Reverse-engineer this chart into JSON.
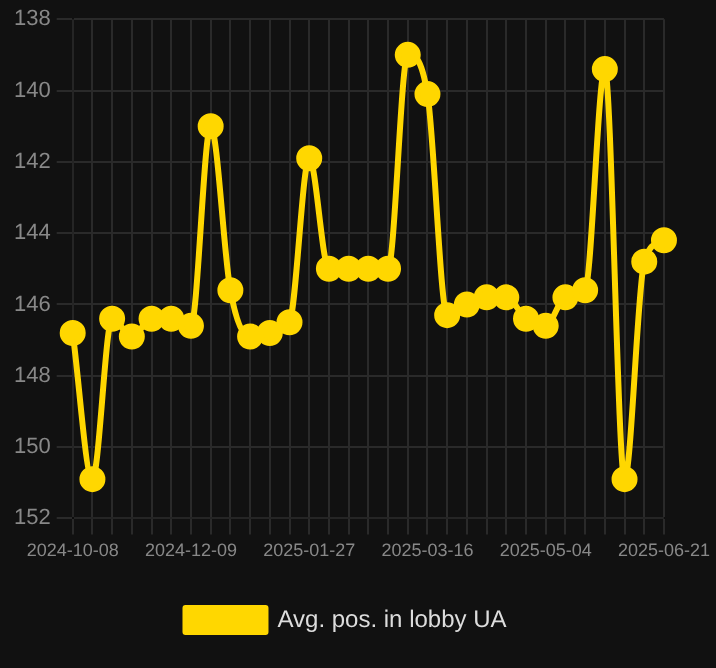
{
  "chart_data": {
    "type": "line",
    "categories": [
      "2024-10-08",
      null,
      null,
      null,
      null,
      null,
      "2024-12-09",
      null,
      null,
      null,
      null,
      null,
      "2025-01-27",
      null,
      null,
      null,
      null,
      null,
      "2025-03-16",
      null,
      null,
      null,
      null,
      null,
      "2025-05-04",
      null,
      null,
      null,
      null,
      null,
      "2025-06-21"
    ],
    "series": [
      {
        "name": "Avg. pos. in lobby UA",
        "color": "#ffd700",
        "values": [
          146.8,
          150.9,
          146.4,
          146.9,
          146.4,
          146.4,
          146.6,
          141.0,
          145.6,
          146.9,
          146.8,
          146.5,
          141.9,
          145.0,
          145.0,
          145.0,
          145.0,
          139.0,
          140.1,
          146.3,
          146.0,
          145.8,
          145.8,
          146.4,
          146.6,
          145.8,
          145.6,
          139.4,
          150.9,
          144.8,
          144.2
        ]
      }
    ],
    "ylim": [
      152,
      138
    ],
    "yticks": [
      138,
      140,
      142,
      144,
      146,
      148,
      150,
      152
    ],
    "grid": true,
    "legend": "bottom",
    "marker": "circle",
    "line_style": "solid"
  }
}
